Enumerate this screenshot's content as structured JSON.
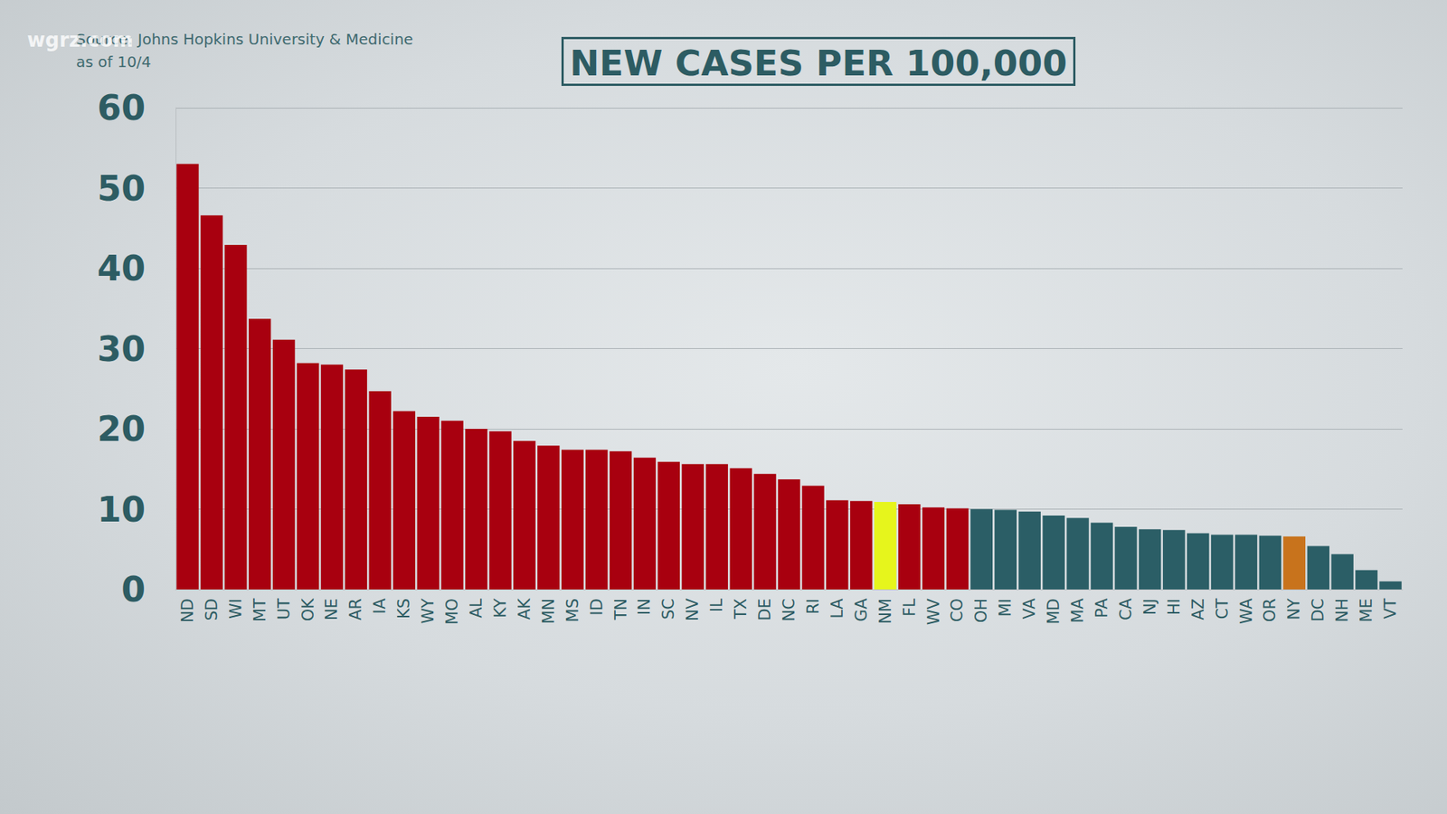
{
  "chart_data": {
    "type": "bar",
    "title": "NEW CASES PER 100,000",
    "subtitle": "Source: Johns Hopkins University & Medicine",
    "annotations": [
      "as of 10/4",
      "wgrz.com"
    ],
    "categories": [
      "ND",
      "SD",
      "WI",
      "MT",
      "UT",
      "OK",
      "NE",
      "AR",
      "IA",
      "KS",
      "WY",
      "MO",
      "AL",
      "KY",
      "AK",
      "MN",
      "MS",
      "ID",
      "TN",
      "IN",
      "SC",
      "NV",
      "IL",
      "TX",
      "DE",
      "NC",
      "RI",
      "LA",
      "GA",
      "NM",
      "FL",
      "WV",
      "CO",
      "OH",
      "MI",
      "VA",
      "MD",
      "MA",
      "PA",
      "CA",
      "NJ",
      "HI",
      "AZ",
      "CT",
      "WA",
      "OR",
      "NY",
      "DC",
      "NH",
      "ME",
      "VT"
    ],
    "values": [
      53.0,
      46.6,
      42.9,
      33.7,
      31.1,
      28.2,
      28.0,
      27.4,
      24.7,
      22.2,
      21.5,
      21.0,
      20.0,
      19.7,
      18.5,
      17.9,
      17.4,
      17.4,
      17.2,
      16.4,
      15.9,
      15.6,
      15.6,
      15.1,
      14.4,
      13.7,
      12.9,
      11.1,
      11.0,
      10.9,
      10.6,
      10.2,
      10.1,
      10.0,
      9.9,
      9.7,
      9.2,
      8.9,
      8.3,
      7.8,
      7.5,
      7.4,
      7.0,
      6.8,
      6.8,
      6.7,
      6.6,
      5.4,
      4.4,
      2.4,
      1.0
    ],
    "colors": [
      "#a8000f",
      "#a8000f",
      "#a8000f",
      "#a8000f",
      "#a8000f",
      "#a8000f",
      "#a8000f",
      "#a8000f",
      "#a8000f",
      "#a8000f",
      "#a8000f",
      "#a8000f",
      "#a8000f",
      "#a8000f",
      "#a8000f",
      "#a8000f",
      "#a8000f",
      "#a8000f",
      "#a8000f",
      "#a8000f",
      "#a8000f",
      "#a8000f",
      "#a8000f",
      "#a8000f",
      "#a8000f",
      "#a8000f",
      "#a8000f",
      "#a8000f",
      "#a8000f",
      "#e6f51c",
      "#a8000f",
      "#a8000f",
      "#a8000f",
      "#2b5e66",
      "#2b5e66",
      "#2b5e66",
      "#2b5e66",
      "#2b5e66",
      "#2b5e66",
      "#2b5e66",
      "#2b5e66",
      "#2b5e66",
      "#2b5e66",
      "#2b5e66",
      "#2b5e66",
      "#2b5e66",
      "#c8731c",
      "#2b5e66",
      "#2b5e66",
      "#2b5e66",
      "#2b5e66"
    ],
    "ylim": [
      0,
      60
    ],
    "yticks": [
      0,
      10,
      20,
      30,
      40,
      50,
      60
    ],
    "grid": true
  }
}
